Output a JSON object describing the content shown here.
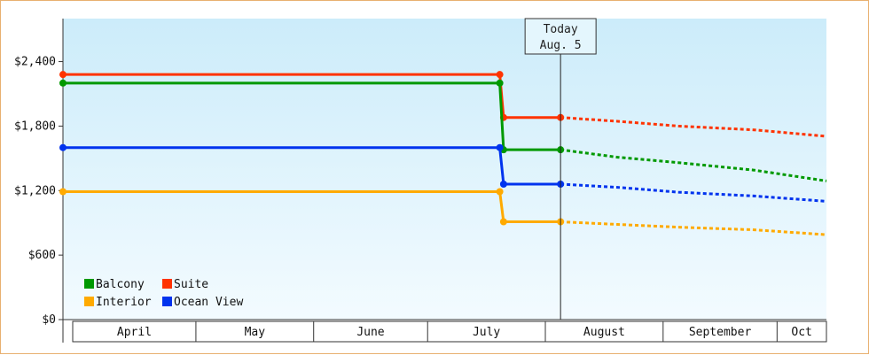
{
  "chart_data": {
    "type": "line",
    "title": "",
    "xlabel": "",
    "ylabel": "",
    "ylim": [
      0,
      2800
    ],
    "y_ticks": [
      {
        "value": 0,
        "label": "$0"
      },
      {
        "value": 600,
        "label": "$600"
      },
      {
        "value": 1200,
        "label": "$1,200"
      },
      {
        "value": 1800,
        "label": "$1,800"
      },
      {
        "value": 2400,
        "label": "$2,400"
      }
    ],
    "x_range": [
      "2024-03-27",
      "2024-10-14"
    ],
    "months": [
      {
        "label": "April",
        "start": "2024-04-01",
        "end": "2024-05-01"
      },
      {
        "label": "May",
        "start": "2024-05-01",
        "end": "2024-06-01"
      },
      {
        "label": "June",
        "start": "2024-06-01",
        "end": "2024-07-01"
      },
      {
        "label": "July",
        "start": "2024-07-01",
        "end": "2024-08-01"
      },
      {
        "label": "August",
        "start": "2024-08-01",
        "end": "2024-09-01"
      },
      {
        "label": "September",
        "start": "2024-09-01",
        "end": "2024-10-01"
      },
      {
        "label": "Oct",
        "start": "2024-10-01",
        "end": "2024-10-14"
      }
    ],
    "today": {
      "date": "2024-08-05",
      "line1": "Today",
      "line2": "Aug. 5"
    },
    "legend_placement": "bottom-left",
    "grid": false,
    "series": [
      {
        "name": "Suite",
        "color": "#ff3300",
        "actual": [
          {
            "x": "2024-03-27",
            "y": 2280
          },
          {
            "x": "2024-07-20",
            "y": 2280
          },
          {
            "x": "2024-07-21",
            "y": 1880
          },
          {
            "x": "2024-08-05",
            "y": 1880
          }
        ],
        "forecast": [
          {
            "x": "2024-08-05",
            "y": 1880
          },
          {
            "x": "2024-08-20",
            "y": 1845
          },
          {
            "x": "2024-09-05",
            "y": 1800
          },
          {
            "x": "2024-09-25",
            "y": 1765
          },
          {
            "x": "2024-10-14",
            "y": 1705
          }
        ]
      },
      {
        "name": "Balcony",
        "color": "#009900",
        "actual": [
          {
            "x": "2024-03-27",
            "y": 2200
          },
          {
            "x": "2024-07-20",
            "y": 2200
          },
          {
            "x": "2024-07-21",
            "y": 1580
          },
          {
            "x": "2024-08-05",
            "y": 1580
          }
        ],
        "forecast": [
          {
            "x": "2024-08-05",
            "y": 1580
          },
          {
            "x": "2024-08-20",
            "y": 1510
          },
          {
            "x": "2024-09-05",
            "y": 1460
          },
          {
            "x": "2024-09-25",
            "y": 1390
          },
          {
            "x": "2024-10-14",
            "y": 1290
          }
        ]
      },
      {
        "name": "Ocean View",
        "color": "#0033ee",
        "actual": [
          {
            "x": "2024-03-27",
            "y": 1600
          },
          {
            "x": "2024-07-20",
            "y": 1600
          },
          {
            "x": "2024-07-21",
            "y": 1260
          },
          {
            "x": "2024-08-05",
            "y": 1260
          }
        ],
        "forecast": [
          {
            "x": "2024-08-05",
            "y": 1260
          },
          {
            "x": "2024-08-20",
            "y": 1230
          },
          {
            "x": "2024-09-05",
            "y": 1185
          },
          {
            "x": "2024-09-25",
            "y": 1150
          },
          {
            "x": "2024-10-14",
            "y": 1100
          }
        ]
      },
      {
        "name": "Interior",
        "color": "#ffaa00",
        "actual": [
          {
            "x": "2024-03-27",
            "y": 1190
          },
          {
            "x": "2024-07-20",
            "y": 1190
          },
          {
            "x": "2024-07-21",
            "y": 910
          },
          {
            "x": "2024-08-05",
            "y": 910
          }
        ],
        "forecast": [
          {
            "x": "2024-08-05",
            "y": 910
          },
          {
            "x": "2024-08-20",
            "y": 885
          },
          {
            "x": "2024-09-05",
            "y": 860
          },
          {
            "x": "2024-09-25",
            "y": 835
          },
          {
            "x": "2024-10-14",
            "y": 790
          }
        ]
      }
    ],
    "legend": [
      {
        "name": "Balcony",
        "color": "#009900"
      },
      {
        "name": "Suite",
        "color": "#ff3300"
      },
      {
        "name": "Interior",
        "color": "#ffaa00"
      },
      {
        "name": "Ocean View",
        "color": "#0033ee"
      }
    ]
  }
}
